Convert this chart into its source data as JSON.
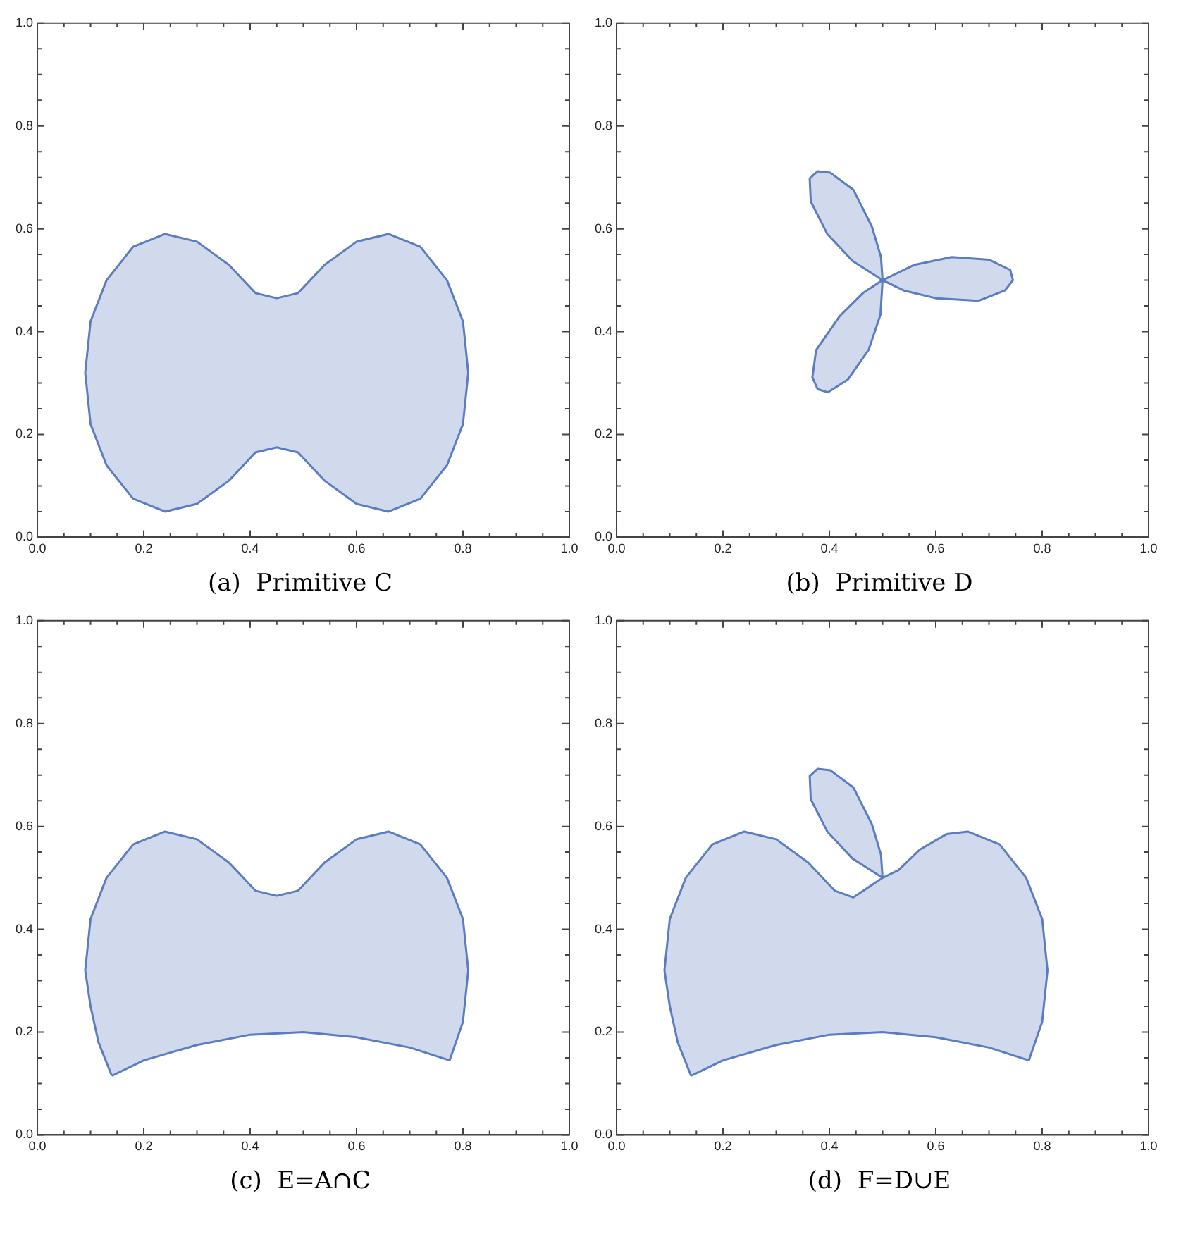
{
  "chart_data": [
    {
      "type": "area",
      "annotations": [
        "(a)  Primitive C"
      ],
      "xlim": [
        0,
        1
      ],
      "ylim": [
        0,
        1
      ],
      "xticks": [
        {
          "value": 0,
          "label": "0.0"
        },
        {
          "value": 0.05,
          "label": null
        },
        {
          "value": 0.1,
          "label": null
        },
        {
          "value": 0.15,
          "label": null
        },
        {
          "value": 0.2,
          "label": "0.2"
        },
        {
          "value": 0.25,
          "label": null
        },
        {
          "value": 0.3,
          "label": null
        },
        {
          "value": 0.35,
          "label": null
        },
        {
          "value": 0.4,
          "label": "0.4"
        },
        {
          "value": 0.45,
          "label": null
        },
        {
          "value": 0.5,
          "label": null
        },
        {
          "value": 0.55,
          "label": null
        },
        {
          "value": 0.6,
          "label": "0.6"
        },
        {
          "value": 0.65,
          "label": null
        },
        {
          "value": 0.7,
          "label": null
        },
        {
          "value": 0.75,
          "label": null
        },
        {
          "value": 0.8,
          "label": "0.8"
        },
        {
          "value": 0.85,
          "label": null
        },
        {
          "value": 0.9,
          "label": null
        },
        {
          "value": 0.95,
          "label": null
        },
        {
          "value": 1,
          "label": "1.0"
        }
      ],
      "yticks": [
        {
          "value": 0,
          "label": "0.0"
        },
        {
          "value": 0.05,
          "label": null
        },
        {
          "value": 0.1,
          "label": null
        },
        {
          "value": 0.15,
          "label": null
        },
        {
          "value": 0.2,
          "label": "0.2"
        },
        {
          "value": 0.25,
          "label": null
        },
        {
          "value": 0.3,
          "label": null
        },
        {
          "value": 0.35,
          "label": null
        },
        {
          "value": 0.4,
          "label": "0.4"
        },
        {
          "value": 0.45,
          "label": null
        },
        {
          "value": 0.5,
          "label": null
        },
        {
          "value": 0.55,
          "label": null
        },
        {
          "value": 0.6,
          "label": "0.6"
        },
        {
          "value": 0.65,
          "label": null
        },
        {
          "value": 0.7,
          "label": null
        },
        {
          "value": 0.75,
          "label": null
        },
        {
          "value": 0.8,
          "label": "0.8"
        },
        {
          "value": 0.85,
          "label": null
        },
        {
          "value": 0.9,
          "label": null
        },
        {
          "value": 0.95,
          "label": null
        },
        {
          "value": 1,
          "label": "1.0"
        }
      ],
      "grid": false,
      "legend": false,
      "marker": "none",
      "line_style": "solid",
      "series": [
        {
          "color": "#5b7dbf",
          "x": [
            0.09,
            0.1,
            0.13,
            0.18,
            0.24,
            0.3,
            0.36,
            0.41,
            0.45,
            0.49,
            0.54,
            0.6,
            0.66,
            0.72,
            0.77,
            0.8,
            0.81,
            0.8,
            0.77,
            0.72,
            0.66,
            0.6,
            0.54,
            0.49,
            0.45,
            0.41,
            0.36,
            0.3,
            0.24,
            0.18,
            0.13,
            0.1,
            0.09
          ],
          "values": [
            0.32,
            0.42,
            0.5,
            0.565,
            0.59,
            0.575,
            0.53,
            0.475,
            0.465,
            0.475,
            0.53,
            0.575,
            0.59,
            0.565,
            0.5,
            0.42,
            0.32,
            0.22,
            0.14,
            0.075,
            0.05,
            0.065,
            0.11,
            0.165,
            0.175,
            0.165,
            0.11,
            0.065,
            0.05,
            0.075,
            0.14,
            0.22,
            0.32
          ]
        }
      ]
    },
    {
      "type": "area",
      "annotations": [
        "(b)  Primitive D"
      ],
      "xlim": [
        0,
        1
      ],
      "ylim": [
        0,
        1
      ],
      "xticks": [
        {
          "value": 0,
          "label": "0.0"
        },
        {
          "value": 0.05,
          "label": null
        },
        {
          "value": 0.1,
          "label": null
        },
        {
          "value": 0.15,
          "label": null
        },
        {
          "value": 0.2,
          "label": "0.2"
        },
        {
          "value": 0.25,
          "label": null
        },
        {
          "value": 0.3,
          "label": null
        },
        {
          "value": 0.35,
          "label": null
        },
        {
          "value": 0.4,
          "label": "0.4"
        },
        {
          "value": 0.45,
          "label": null
        },
        {
          "value": 0.5,
          "label": null
        },
        {
          "value": 0.55,
          "label": null
        },
        {
          "value": 0.6,
          "label": "0.6"
        },
        {
          "value": 0.65,
          "label": null
        },
        {
          "value": 0.7,
          "label": null
        },
        {
          "value": 0.75,
          "label": null
        },
        {
          "value": 0.8,
          "label": "0.8"
        },
        {
          "value": 0.85,
          "label": null
        },
        {
          "value": 0.9,
          "label": null
        },
        {
          "value": 0.95,
          "label": null
        },
        {
          "value": 1,
          "label": "1.0"
        }
      ],
      "yticks": [
        {
          "value": 0,
          "label": "0.0"
        },
        {
          "value": 0.05,
          "label": null
        },
        {
          "value": 0.1,
          "label": null
        },
        {
          "value": 0.15,
          "label": null
        },
        {
          "value": 0.2,
          "label": "0.2"
        },
        {
          "value": 0.25,
          "label": null
        },
        {
          "value": 0.3,
          "label": null
        },
        {
          "value": 0.35,
          "label": null
        },
        {
          "value": 0.4,
          "label": "0.4"
        },
        {
          "value": 0.45,
          "label": null
        },
        {
          "value": 0.5,
          "label": null
        },
        {
          "value": 0.55,
          "label": null
        },
        {
          "value": 0.6,
          "label": "0.6"
        },
        {
          "value": 0.65,
          "label": null
        },
        {
          "value": 0.7,
          "label": null
        },
        {
          "value": 0.75,
          "label": null
        },
        {
          "value": 0.8,
          "label": "0.8"
        },
        {
          "value": 0.85,
          "label": null
        },
        {
          "value": 0.9,
          "label": null
        },
        {
          "value": 0.95,
          "label": null
        },
        {
          "value": 1,
          "label": "1.0"
        }
      ],
      "grid": false,
      "legend": false,
      "marker": "none",
      "line_style": "solid",
      "series": [
        {
          "color": "#5b7dbf",
          "x": [
            0.5,
            0.56,
            0.63,
            0.7,
            0.74,
            0.745,
            0.73,
            0.68,
            0.6,
            0.54,
            0.5,
            0.444,
            0.396,
            0.365,
            0.363,
            0.378,
            0.402,
            0.445,
            0.48,
            0.497,
            0.5,
            0.496,
            0.474,
            0.435,
            0.397,
            0.378,
            0.368,
            0.375,
            0.42,
            0.463,
            0.5
          ],
          "values": [
            0.5,
            0.53,
            0.545,
            0.54,
            0.52,
            0.5,
            0.48,
            0.46,
            0.465,
            0.48,
            0.5,
            0.537,
            0.59,
            0.653,
            0.698,
            0.712,
            0.709,
            0.676,
            0.604,
            0.545,
            0.5,
            0.433,
            0.365,
            0.307,
            0.282,
            0.288,
            0.311,
            0.364,
            0.431,
            0.475,
            0.5
          ]
        }
      ]
    },
    {
      "type": "area",
      "annotations": [
        "(c)  E=A∩C"
      ],
      "xlim": [
        0,
        1
      ],
      "ylim": [
        0,
        1
      ],
      "xticks": [
        {
          "value": 0,
          "label": "0.0"
        },
        {
          "value": 0.05,
          "label": null
        },
        {
          "value": 0.1,
          "label": null
        },
        {
          "value": 0.15,
          "label": null
        },
        {
          "value": 0.2,
          "label": "0.2"
        },
        {
          "value": 0.25,
          "label": null
        },
        {
          "value": 0.3,
          "label": null
        },
        {
          "value": 0.35,
          "label": null
        },
        {
          "value": 0.4,
          "label": "0.4"
        },
        {
          "value": 0.45,
          "label": null
        },
        {
          "value": 0.5,
          "label": null
        },
        {
          "value": 0.55,
          "label": null
        },
        {
          "value": 0.6,
          "label": "0.6"
        },
        {
          "value": 0.65,
          "label": null
        },
        {
          "value": 0.7,
          "label": null
        },
        {
          "value": 0.75,
          "label": null
        },
        {
          "value": 0.8,
          "label": "0.8"
        },
        {
          "value": 0.85,
          "label": null
        },
        {
          "value": 0.9,
          "label": null
        },
        {
          "value": 0.95,
          "label": null
        },
        {
          "value": 1,
          "label": "1.0"
        }
      ],
      "yticks": [
        {
          "value": 0,
          "label": "0.0"
        },
        {
          "value": 0.05,
          "label": null
        },
        {
          "value": 0.1,
          "label": null
        },
        {
          "value": 0.15,
          "label": null
        },
        {
          "value": 0.2,
          "label": "0.2"
        },
        {
          "value": 0.25,
          "label": null
        },
        {
          "value": 0.3,
          "label": null
        },
        {
          "value": 0.35,
          "label": null
        },
        {
          "value": 0.4,
          "label": "0.4"
        },
        {
          "value": 0.45,
          "label": null
        },
        {
          "value": 0.5,
          "label": null
        },
        {
          "value": 0.55,
          "label": null
        },
        {
          "value": 0.6,
          "label": "0.6"
        },
        {
          "value": 0.65,
          "label": null
        },
        {
          "value": 0.7,
          "label": null
        },
        {
          "value": 0.75,
          "label": null
        },
        {
          "value": 0.8,
          "label": "0.8"
        },
        {
          "value": 0.85,
          "label": null
        },
        {
          "value": 0.9,
          "label": null
        },
        {
          "value": 0.95,
          "label": null
        },
        {
          "value": 1,
          "label": "1.0"
        }
      ],
      "grid": false,
      "legend": false,
      "marker": "none",
      "line_style": "solid",
      "series": [
        {
          "color": "#5b7dbf",
          "x": [
            0.14,
            0.115,
            0.1,
            0.09,
            0.1,
            0.13,
            0.18,
            0.24,
            0.3,
            0.36,
            0.41,
            0.45,
            0.49,
            0.54,
            0.6,
            0.66,
            0.72,
            0.77,
            0.8,
            0.81,
            0.8,
            0.775,
            0.7,
            0.6,
            0.5,
            0.4,
            0.3,
            0.2,
            0.14
          ],
          "values": [
            0.115,
            0.18,
            0.25,
            0.32,
            0.42,
            0.5,
            0.565,
            0.59,
            0.575,
            0.53,
            0.475,
            0.465,
            0.475,
            0.53,
            0.575,
            0.59,
            0.565,
            0.5,
            0.42,
            0.32,
            0.22,
            0.145,
            0.17,
            0.19,
            0.2,
            0.195,
            0.175,
            0.145,
            0.115
          ]
        }
      ]
    },
    {
      "type": "area",
      "annotations": [
        "(d)  F=D∪E"
      ],
      "xlim": [
        0,
        1
      ],
      "ylim": [
        0,
        1
      ],
      "xticks": [
        {
          "value": 0,
          "label": "0.0"
        },
        {
          "value": 0.05,
          "label": null
        },
        {
          "value": 0.1,
          "label": null
        },
        {
          "value": 0.15,
          "label": null
        },
        {
          "value": 0.2,
          "label": "0.2"
        },
        {
          "value": 0.25,
          "label": null
        },
        {
          "value": 0.3,
          "label": null
        },
        {
          "value": 0.35,
          "label": null
        },
        {
          "value": 0.4,
          "label": "0.4"
        },
        {
          "value": 0.45,
          "label": null
        },
        {
          "value": 0.5,
          "label": null
        },
        {
          "value": 0.55,
          "label": null
        },
        {
          "value": 0.6,
          "label": "0.6"
        },
        {
          "value": 0.65,
          "label": null
        },
        {
          "value": 0.7,
          "label": null
        },
        {
          "value": 0.75,
          "label": null
        },
        {
          "value": 0.8,
          "label": "0.8"
        },
        {
          "value": 0.85,
          "label": null
        },
        {
          "value": 0.9,
          "label": null
        },
        {
          "value": 0.95,
          "label": null
        },
        {
          "value": 1,
          "label": "1.0"
        }
      ],
      "yticks": [
        {
          "value": 0,
          "label": "0.0"
        },
        {
          "value": 0.05,
          "label": null
        },
        {
          "value": 0.1,
          "label": null
        },
        {
          "value": 0.15,
          "label": null
        },
        {
          "value": 0.2,
          "label": "0.2"
        },
        {
          "value": 0.25,
          "label": null
        },
        {
          "value": 0.3,
          "label": null
        },
        {
          "value": 0.35,
          "label": null
        },
        {
          "value": 0.4,
          "label": "0.4"
        },
        {
          "value": 0.45,
          "label": null
        },
        {
          "value": 0.5,
          "label": null
        },
        {
          "value": 0.55,
          "label": null
        },
        {
          "value": 0.6,
          "label": "0.6"
        },
        {
          "value": 0.65,
          "label": null
        },
        {
          "value": 0.7,
          "label": null
        },
        {
          "value": 0.75,
          "label": null
        },
        {
          "value": 0.8,
          "label": "0.8"
        },
        {
          "value": 0.85,
          "label": null
        },
        {
          "value": 0.9,
          "label": null
        },
        {
          "value": 0.95,
          "label": null
        },
        {
          "value": 1,
          "label": "1.0"
        }
      ],
      "grid": false,
      "legend": false,
      "marker": "none",
      "line_style": "solid",
      "series": [
        {
          "color": "#5b7dbf",
          "x": [
            0.14,
            0.115,
            0.1,
            0.09,
            0.1,
            0.13,
            0.18,
            0.24,
            0.3,
            0.36,
            0.41,
            0.445,
            0.5,
            0.444,
            0.396,
            0.365,
            0.363,
            0.378,
            0.402,
            0.445,
            0.48,
            0.497,
            0.5,
            0.53,
            0.57,
            0.62,
            0.66,
            0.72,
            0.77,
            0.8,
            0.81,
            0.8,
            0.775,
            0.7,
            0.6,
            0.5,
            0.4,
            0.3,
            0.2,
            0.14
          ],
          "values": [
            0.115,
            0.18,
            0.25,
            0.32,
            0.42,
            0.5,
            0.565,
            0.59,
            0.575,
            0.53,
            0.475,
            0.462,
            0.5,
            0.537,
            0.59,
            0.653,
            0.698,
            0.712,
            0.709,
            0.676,
            0.604,
            0.545,
            0.5,
            0.515,
            0.555,
            0.585,
            0.59,
            0.565,
            0.5,
            0.42,
            0.32,
            0.22,
            0.145,
            0.17,
            0.19,
            0.2,
            0.195,
            0.175,
            0.145,
            0.115
          ]
        }
      ]
    }
  ]
}
